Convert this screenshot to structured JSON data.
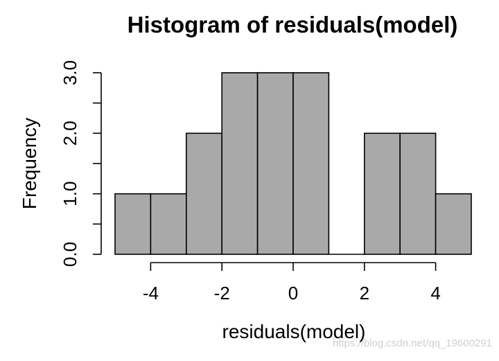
{
  "chart_data": {
    "type": "bar",
    "title": "Histogram of residuals(model)",
    "xlabel": "residuals(model)",
    "ylabel": "Frequency",
    "bins": [
      {
        "x0": -5,
        "x1": -4,
        "count": 1
      },
      {
        "x0": -4,
        "x1": -3,
        "count": 1
      },
      {
        "x0": -3,
        "x1": -2,
        "count": 2
      },
      {
        "x0": -2,
        "x1": -1,
        "count": 3
      },
      {
        "x0": -1,
        "x1": 0,
        "count": 3
      },
      {
        "x0": 0,
        "x1": 1,
        "count": 3
      },
      {
        "x0": 1,
        "x1": 2,
        "count": 0
      },
      {
        "x0": 2,
        "x1": 3,
        "count": 2
      },
      {
        "x0": 3,
        "x1": 4,
        "count": 2
      },
      {
        "x0": 4,
        "x1": 5,
        "count": 1
      }
    ],
    "xlim": [
      -5,
      5
    ],
    "ylim": [
      0,
      3
    ],
    "x_ticks": [
      -4,
      -2,
      0,
      2,
      4
    ],
    "x_tick_labels": [
      "-4",
      "-2",
      "0",
      "2",
      "4"
    ],
    "y_ticks": [
      0,
      0.5,
      1,
      1.5,
      2,
      2.5,
      3
    ],
    "y_tick_labels": [
      "0.0",
      "",
      "1.0",
      "",
      "2.0",
      "",
      "3.0"
    ],
    "bar_fill": "#a9a9a9",
    "grid": false
  },
  "watermark": "https://blog.csdn.net/qq_19600291"
}
